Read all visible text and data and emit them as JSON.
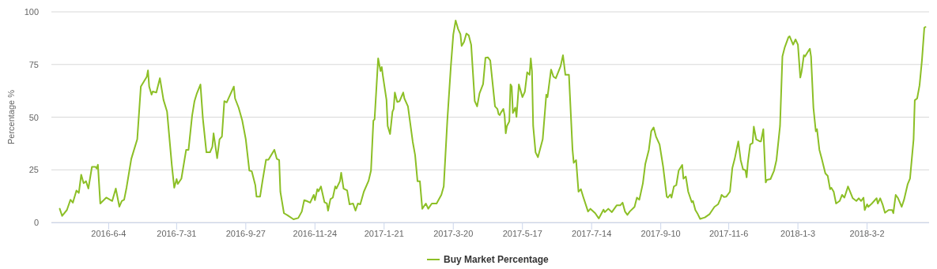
{
  "chart_data": {
    "type": "line",
    "ylabel": "Percentage %",
    "ylim": [
      0,
      100
    ],
    "yticks": [
      0,
      25,
      50,
      75,
      100
    ],
    "grid": "y",
    "legend": "bottom",
    "marker": "none",
    "xlim": [
      "2016-04-17",
      "2018-04-23"
    ],
    "xticks": [
      {
        "value": "2016-06-04",
        "label": "2016-6-4"
      },
      {
        "value": "2016-07-31",
        "label": "2016-7-31"
      },
      {
        "value": "2016-09-27",
        "label": "2016-9-27"
      },
      {
        "value": "2016-11-24",
        "label": "2016-11-24"
      },
      {
        "value": "2017-01-21",
        "label": "2017-1-21"
      },
      {
        "value": "2017-03-20",
        "label": "2017-3-20"
      },
      {
        "value": "2017-05-17",
        "label": "2017-5-17"
      },
      {
        "value": "2017-07-14",
        "label": "2017-7-14"
      },
      {
        "value": "2017-09-10",
        "label": "2017-9-10"
      },
      {
        "value": "2017-11-06",
        "label": "2017-11-6"
      },
      {
        "value": "2018-01-03",
        "label": "2018-1-3"
      },
      {
        "value": "2018-03-02",
        "label": "2018-3-2"
      }
    ],
    "x": [
      "2016-04-24",
      "2016-04-26",
      "2016-04-30",
      "2016-05-03",
      "2016-05-05",
      "2016-05-08",
      "2016-05-10",
      "2016-05-12",
      "2016-05-14",
      "2016-05-16",
      "2016-05-18",
      "2016-05-21",
      "2016-05-24",
      "2016-05-25",
      "2016-05-26",
      "2016-05-28",
      "2016-06-02",
      "2016-06-07",
      "2016-06-10",
      "2016-06-13",
      "2016-06-15",
      "2016-06-17",
      "2016-06-19",
      "2016-06-23",
      "2016-06-26",
      "2016-06-28",
      "2016-07-01",
      "2016-07-06",
      "2016-07-07",
      "2016-07-08",
      "2016-07-10",
      "2016-07-11",
      "2016-07-14",
      "2016-07-17",
      "2016-07-20",
      "2016-07-23",
      "2016-07-27",
      "2016-07-29",
      "2016-07-31",
      "2016-08-01",
      "2016-08-04",
      "2016-08-08",
      "2016-08-10",
      "2016-08-13",
      "2016-08-15",
      "2016-08-17",
      "2016-08-20",
      "2016-08-22",
      "2016-08-25",
      "2016-08-28",
      "2016-08-30",
      "2016-08-31",
      "2016-09-03",
      "2016-09-05",
      "2016-09-07",
      "2016-09-09",
      "2016-09-11",
      "2016-09-13",
      "2016-09-17",
      "2016-09-18",
      "2016-09-21",
      "2016-09-24",
      "2016-09-27",
      "2016-09-30",
      "2016-10-02",
      "2016-10-05",
      "2016-10-06",
      "2016-10-09",
      "2016-10-11",
      "2016-10-14",
      "2016-10-16",
      "2016-10-21",
      "2016-10-23",
      "2016-10-25",
      "2016-10-26",
      "2016-10-29",
      "2016-11-01",
      "2016-11-06",
      "2016-11-10",
      "2016-11-13",
      "2016-11-15",
      "2016-11-17",
      "2016-11-20",
      "2016-11-23",
      "2016-11-24",
      "2016-11-26",
      "2016-11-27",
      "2016-11-29",
      "2016-12-02",
      "2016-12-04",
      "2016-12-05",
      "2016-12-07",
      "2016-12-09",
      "2016-12-11",
      "2016-12-12",
      "2016-12-15",
      "2016-12-16",
      "2016-12-18",
      "2016-12-21",
      "2016-12-23",
      "2016-12-26",
      "2016-12-28",
      "2016-12-30",
      "2017-01-01",
      "2017-01-04",
      "2017-01-08",
      "2017-01-10",
      "2017-01-12",
      "2017-01-13",
      "2017-01-16",
      "2017-01-18",
      "2017-01-19",
      "2017-01-20",
      "2017-01-23",
      "2017-01-24",
      "2017-01-26",
      "2017-01-28",
      "2017-01-29",
      "2017-01-30",
      "2017-02-01",
      "2017-02-03",
      "2017-02-06",
      "2017-02-07",
      "2017-02-10",
      "2017-02-14",
      "2017-02-16",
      "2017-02-18",
      "2017-02-20",
      "2017-02-22",
      "2017-02-25",
      "2017-02-27",
      "2017-03-02",
      "2017-03-06",
      "2017-03-10",
      "2017-03-12",
      "2017-03-15",
      "2017-03-18",
      "2017-03-20",
      "2017-03-22",
      "2017-03-24",
      "2017-03-26",
      "2017-03-27",
      "2017-03-29",
      "2017-03-31",
      "2017-04-02",
      "2017-04-04",
      "2017-04-07",
      "2017-04-09",
      "2017-04-11",
      "2017-04-14",
      "2017-04-16",
      "2017-04-18",
      "2017-04-20",
      "2017-04-24",
      "2017-04-26",
      "2017-04-27",
      "2017-04-28",
      "2017-04-29",
      "2017-05-01",
      "2017-05-02",
      "2017-05-03",
      "2017-05-04",
      "2017-05-06",
      "2017-05-07",
      "2017-05-08",
      "2017-05-09",
      "2017-05-11",
      "2017-05-12",
      "2017-05-14",
      "2017-05-17",
      "2017-05-19",
      "2017-05-21",
      "2017-05-23",
      "2017-05-24",
      "2017-05-25",
      "2017-05-26",
      "2017-05-28",
      "2017-05-30",
      "2017-06-03",
      "2017-06-06",
      "2017-06-07",
      "2017-06-10",
      "2017-06-12",
      "2017-06-14",
      "2017-06-18",
      "2017-06-20",
      "2017-06-22",
      "2017-06-25",
      "2017-06-28",
      "2017-06-29",
      "2017-07-01",
      "2017-07-03",
      "2017-07-05",
      "2017-07-07",
      "2017-07-11",
      "2017-07-13",
      "2017-07-17",
      "2017-07-20",
      "2017-07-24",
      "2017-07-25",
      "2017-07-28",
      "2017-07-31",
      "2017-08-04",
      "2017-08-07",
      "2017-08-09",
      "2017-08-11",
      "2017-08-13",
      "2017-08-15",
      "2017-08-19",
      "2017-08-21",
      "2017-08-23",
      "2017-08-26",
      "2017-08-28",
      "2017-08-31",
      "2017-09-02",
      "2017-09-04",
      "2017-09-06",
      "2017-09-09",
      "2017-09-12",
      "2017-09-15",
      "2017-09-16",
      "2017-09-18",
      "2017-09-19",
      "2017-09-21",
      "2017-09-23",
      "2017-09-25",
      "2017-09-28",
      "2017-09-29",
      "2017-10-01",
      "2017-10-03",
      "2017-10-06",
      "2017-10-07",
      "2017-10-09",
      "2017-10-11",
      "2017-10-13",
      "2017-10-17",
      "2017-10-21",
      "2017-10-25",
      "2017-10-28",
      "2017-10-30",
      "2017-10-31",
      "2017-11-02",
      "2017-11-04",
      "2017-11-07",
      "2017-11-09",
      "2017-11-11",
      "2017-11-14",
      "2017-11-16",
      "2017-11-18",
      "2017-11-20",
      "2017-11-21",
      "2017-11-22",
      "2017-11-24",
      "2017-11-26",
      "2017-11-27",
      "2017-11-29",
      "2017-12-02",
      "2017-12-03",
      "2017-12-05",
      "2017-12-07",
      "2017-12-08",
      "2017-12-11",
      "2017-12-14",
      "2017-12-16",
      "2017-12-19",
      "2017-12-21",
      "2017-12-23",
      "2017-12-26",
      "2017-12-27",
      "2017-12-30",
      "2018-01-01",
      "2018-01-03",
      "2018-01-05",
      "2018-01-06",
      "2018-01-08",
      "2018-01-09",
      "2018-01-11",
      "2018-01-13",
      "2018-01-14",
      "2018-01-16",
      "2018-01-18",
      "2018-01-19",
      "2018-01-21",
      "2018-01-23",
      "2018-01-26",
      "2018-01-28",
      "2018-01-30",
      "2018-01-31",
      "2018-02-02",
      "2018-02-04",
      "2018-02-07",
      "2018-02-09",
      "2018-02-11",
      "2018-02-14",
      "2018-02-18",
      "2018-02-21",
      "2018-02-23",
      "2018-02-25",
      "2018-02-27",
      "2018-02-28",
      "2018-03-02",
      "2018-03-03",
      "2018-03-06",
      "2018-03-10",
      "2018-03-11",
      "2018-03-13",
      "2018-03-15",
      "2018-03-17",
      "2018-03-20",
      "2018-03-23",
      "2018-03-24",
      "2018-03-26",
      "2018-03-28",
      "2018-03-31",
      "2018-04-02",
      "2018-04-05",
      "2018-04-07",
      "2018-04-10",
      "2018-04-11",
      "2018-04-13",
      "2018-04-15",
      "2018-04-17",
      "2018-04-19",
      "2018-04-20"
    ],
    "series": [
      {
        "name": "Buy Market Percentage",
        "color": "#8cbf26",
        "values": [
          6.5,
          3.1,
          5.9,
          10.8,
          9.4,
          15.2,
          14,
          22.7,
          18.6,
          19.6,
          16.1,
          26.4,
          26.4,
          25.6,
          27.4,
          9,
          11.8,
          10.2,
          16.1,
          7.5,
          10.2,
          10.8,
          16.5,
          30.2,
          35.8,
          39.5,
          64.5,
          69.2,
          72.2,
          64.5,
          60.7,
          62.2,
          61.7,
          68.5,
          58.2,
          52.6,
          27.1,
          16.5,
          20.6,
          18.3,
          20.8,
          34.5,
          34.5,
          50.7,
          57.6,
          61.3,
          65.5,
          49.5,
          33.3,
          33.3,
          36,
          42.3,
          30.5,
          39.5,
          40.8,
          57.6,
          57,
          59.5,
          64.5,
          58.9,
          54.5,
          48.5,
          39.5,
          24.6,
          24.3,
          17.7,
          12.3,
          12.3,
          19.6,
          29.8,
          29.8,
          34.5,
          30.2,
          29.6,
          14.6,
          4.4,
          3.4,
          1.5,
          2.1,
          5.2,
          10.6,
          10.2,
          9.4,
          13.1,
          10.6,
          15.8,
          14.8,
          17.1,
          9.6,
          9,
          5.6,
          11.1,
          11.8,
          17.1,
          16.1,
          19.6,
          23.6,
          16.1,
          15.2,
          8.6,
          9,
          5.6,
          9,
          8.6,
          14.6,
          19.8,
          24.6,
          48.3,
          48.9,
          77.9,
          71.9,
          73.8,
          69.5,
          58.2,
          45.8,
          42,
          52.6,
          53.9,
          61.7,
          57.2,
          57.6,
          61.7,
          58.9,
          55.1,
          38.3,
          32,
          19.6,
          19.6,
          6.5,
          9,
          6.5,
          9,
          9,
          13.1,
          17.1,
          48.3,
          74.4,
          89.2,
          95.9,
          91.9,
          89.4,
          83.8,
          85.7,
          89.7,
          88.8,
          84.4,
          57.6,
          55.1,
          61.3,
          65.7,
          78.2,
          78.4,
          76.9,
          55.1,
          53.9,
          51.4,
          51,
          52.2,
          53.9,
          51,
          42.3,
          45.8,
          48,
          65.5,
          64.5,
          52,
          54.5,
          50.1,
          65.5,
          59.5,
          62,
          71.3,
          70.1,
          77.9,
          71.9,
          45.8,
          33.3,
          31,
          39.5,
          60.7,
          59.5,
          72.6,
          69.2,
          68.5,
          74.2,
          79.4,
          70.1,
          70.1,
          34.5,
          28.3,
          29.6,
          14.6,
          15.8,
          12.1,
          5.2,
          6.5,
          4.4,
          1.9,
          6.1,
          4.9,
          6.5,
          4.9,
          8.1,
          8.1,
          9.4,
          5.2,
          3.6,
          5.2,
          7.4,
          11.8,
          10.8,
          18.6,
          27.7,
          34.5,
          43.3,
          45.1,
          40.8,
          37,
          26.4,
          12.3,
          11.8,
          13.3,
          11.8,
          17.1,
          17.7,
          24.6,
          27.3,
          20.8,
          21.8,
          14.6,
          9.6,
          10.2,
          5.9,
          4,
          1.7,
          2.4,
          4,
          7.4,
          8.6,
          11.1,
          13.1,
          12.1,
          12.3,
          14.6,
          25.8,
          30.2,
          38.5,
          29.6,
          25.2,
          24.8,
          21.4,
          28.3,
          37,
          37.7,
          45.5,
          39.5,
          38.5,
          38.5,
          44.3,
          19,
          20.2,
          20.6,
          24.6,
          29.6,
          45.8,
          78.8,
          83.2,
          87.9,
          88.4,
          84.4,
          86.9,
          84.4,
          68.8,
          71.3,
          79.4,
          78.8,
          80.7,
          82.5,
          78.8,
          54.5,
          43.3,
          44.3,
          34.5,
          30.2,
          23.3,
          22.1,
          15.8,
          16.5,
          14.6,
          9,
          10.2,
          13.1,
          11.8,
          17.1,
          11.5,
          10.2,
          11.5,
          10.2,
          11.8,
          5.9,
          8.6,
          7.4,
          9,
          11.5,
          9,
          11.5,
          8.6,
          4.6,
          5.9,
          5.9,
          4.4,
          13.1,
          11.5,
          7.4,
          10.8,
          18.1,
          20.8,
          39.5,
          58,
          58.9,
          65.1,
          76.9,
          92.5,
          92.8
        ]
      }
    ]
  }
}
